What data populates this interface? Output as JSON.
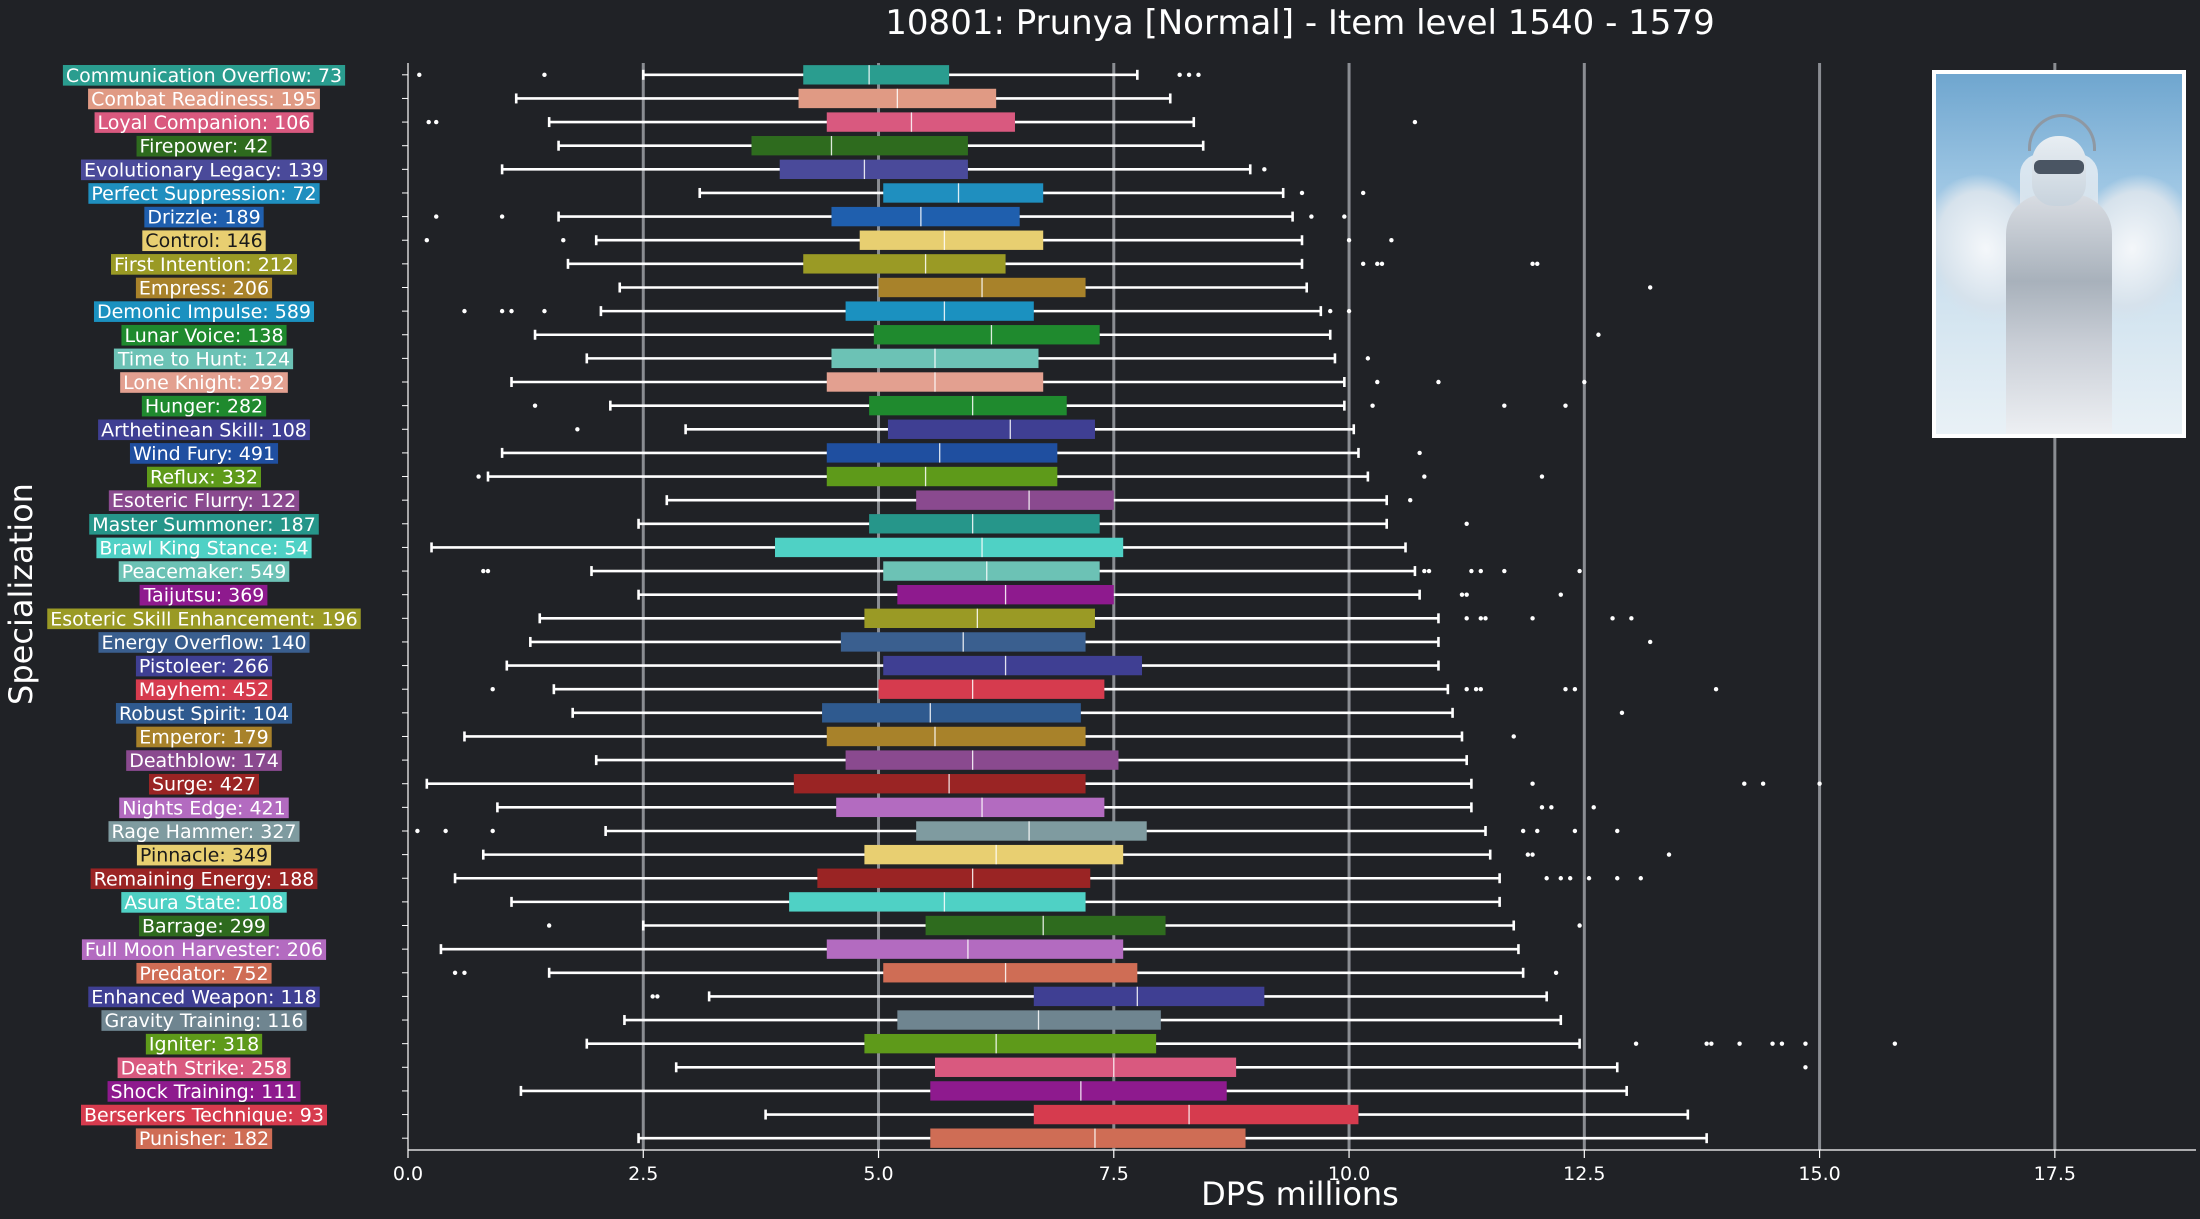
{
  "chart_data": {
    "type": "boxplot",
    "orientation": "horizontal",
    "title": "10801: Prunya [Normal] - Item level 1540 - 1579",
    "xlabel": "DPS millions",
    "ylabel": "Specialization",
    "xlim": [
      0,
      19
    ],
    "xticks": [
      0.0,
      2.5,
      5.0,
      7.5,
      10.0,
      12.5,
      15.0,
      17.5
    ],
    "xtick_labels": [
      "0.0",
      "2.5",
      "5.0",
      "7.5",
      "10.0",
      "12.5",
      "15.0",
      "17.5"
    ],
    "grid": "vertical major lines",
    "categories": [
      {
        "label": "Communication Overflow: 73",
        "color": "#2a9d8f",
        "whislo": 2.5,
        "q1": 4.2,
        "med": 4.9,
        "q3": 5.75,
        "whishi": 7.75,
        "fliers": [
          0.12,
          1.45,
          8.2,
          8.3,
          8.4
        ]
      },
      {
        "label": "Combat Readiness: 195",
        "color": "#e09a84",
        "whislo": 1.15,
        "q1": 4.15,
        "med": 5.2,
        "q3": 6.25,
        "whishi": 8.1,
        "fliers": []
      },
      {
        "label": "Loyal Companion: 106",
        "color": "#d9597f",
        "whislo": 1.5,
        "q1": 4.45,
        "med": 5.35,
        "q3": 6.45,
        "whishi": 8.35,
        "fliers": [
          0.22,
          0.3,
          10.7
        ]
      },
      {
        "label": "Firepower: 42",
        "color": "#2e6b1e",
        "whislo": 1.6,
        "q1": 3.65,
        "med": 4.5,
        "q3": 5.95,
        "whishi": 8.45,
        "fliers": []
      },
      {
        "label": "Evolutionary Legacy: 139",
        "color": "#4a4a9a",
        "whislo": 1.0,
        "q1": 3.95,
        "med": 4.85,
        "q3": 5.95,
        "whishi": 8.95,
        "fliers": [
          9.1
        ]
      },
      {
        "label": "Perfect Suppression: 72",
        "color": "#1f8fbf",
        "whislo": 3.1,
        "q1": 5.05,
        "med": 5.85,
        "q3": 6.75,
        "whishi": 9.3,
        "fliers": [
          9.5,
          10.15
        ]
      },
      {
        "label": "Drizzle: 189",
        "color": "#1f5fae",
        "whislo": 1.6,
        "q1": 4.5,
        "med": 5.45,
        "q3": 6.5,
        "whishi": 9.4,
        "fliers": [
          0.3,
          1.0,
          9.6,
          9.95
        ]
      },
      {
        "label": "Control: 146",
        "color": "#e8cf71",
        "whislo": 2.0,
        "q1": 4.8,
        "med": 5.7,
        "q3": 6.75,
        "whishi": 9.5,
        "fliers": [
          0.2,
          1.65,
          10.0,
          10.45
        ]
      },
      {
        "label": "First Intention: 212",
        "color": "#9a9a25",
        "whislo": 1.7,
        "q1": 4.2,
        "med": 5.5,
        "q3": 6.35,
        "whishi": 9.5,
        "fliers": [
          10.15,
          10.3,
          10.35,
          11.95,
          12.0
        ]
      },
      {
        "label": "Empress: 206",
        "color": "#a8822a",
        "whislo": 2.25,
        "q1": 5.0,
        "med": 6.1,
        "q3": 7.2,
        "whishi": 9.55,
        "fliers": [
          13.2
        ]
      },
      {
        "label": "Demonic Impulse: 589",
        "color": "#1b91c0",
        "whislo": 2.05,
        "q1": 4.65,
        "med": 5.7,
        "q3": 6.65,
        "whishi": 9.7,
        "fliers": [
          0.6,
          1.0,
          1.1,
          1.45,
          9.8,
          10.0
        ]
      },
      {
        "label": "Lunar Voice: 138",
        "color": "#1f8a2e",
        "whislo": 1.35,
        "q1": 4.95,
        "med": 6.2,
        "q3": 7.35,
        "whishi": 9.8,
        "fliers": [
          12.65
        ]
      },
      {
        "label": "Time to Hunt: 124",
        "color": "#6cc2b5",
        "whislo": 1.9,
        "q1": 4.5,
        "med": 5.6,
        "q3": 6.7,
        "whishi": 9.85,
        "fliers": [
          10.2
        ]
      },
      {
        "label": "Lone Knight: 292",
        "color": "#e3a090",
        "whislo": 1.1,
        "q1": 4.45,
        "med": 5.6,
        "q3": 6.75,
        "whishi": 9.95,
        "fliers": [
          10.3,
          10.95,
          12.5
        ]
      },
      {
        "label": "Hunger: 282",
        "color": "#1f8a2e",
        "whislo": 2.15,
        "q1": 4.9,
        "med": 6.0,
        "q3": 7.0,
        "whishi": 9.95,
        "fliers": [
          1.35,
          10.25,
          11.65,
          12.3
        ]
      },
      {
        "label": "Arthetinean Skill: 108",
        "color": "#3f3f93",
        "whislo": 2.95,
        "q1": 5.1,
        "med": 6.4,
        "q3": 7.3,
        "whishi": 10.05,
        "fliers": [
          1.8
        ]
      },
      {
        "label": "Wind Fury: 491",
        "color": "#1f4fa0",
        "whislo": 1.0,
        "q1": 4.45,
        "med": 5.65,
        "q3": 6.9,
        "whishi": 10.1,
        "fliers": [
          10.75
        ]
      },
      {
        "label": "Reflux: 332",
        "color": "#5e9a1a",
        "whislo": 0.85,
        "q1": 4.45,
        "med": 5.5,
        "q3": 6.9,
        "whishi": 10.2,
        "fliers": [
          0.75,
          10.8,
          12.05
        ]
      },
      {
        "label": "Esoteric Flurry: 122",
        "color": "#8a4a8f",
        "whislo": 2.75,
        "q1": 5.4,
        "med": 6.6,
        "q3": 7.5,
        "whishi": 10.4,
        "fliers": [
          10.65
        ]
      },
      {
        "label": "Master Summoner: 187",
        "color": "#26968a",
        "whislo": 2.45,
        "q1": 4.9,
        "med": 6.0,
        "q3": 7.35,
        "whishi": 10.4,
        "fliers": [
          11.25
        ]
      },
      {
        "label": "Brawl King Stance: 54",
        "color": "#4fd1c5",
        "whislo": 0.25,
        "q1": 3.9,
        "med": 6.1,
        "q3": 7.6,
        "whishi": 10.6,
        "fliers": []
      },
      {
        "label": "Peacemaker: 549",
        "color": "#6cc2b5",
        "whislo": 1.95,
        "q1": 5.05,
        "med": 6.15,
        "q3": 7.35,
        "whishi": 10.7,
        "fliers": [
          0.8,
          0.85,
          10.8,
          10.85,
          11.3,
          11.4,
          11.65,
          12.45
        ]
      },
      {
        "label": "Taijutsu: 369",
        "color": "#8e1a8e",
        "whislo": 2.45,
        "q1": 5.2,
        "med": 6.35,
        "q3": 7.5,
        "whishi": 10.75,
        "fliers": [
          11.2,
          11.25,
          12.25
        ]
      },
      {
        "label": "Esoteric Skill Enhancement: 196",
        "color": "#9a9a25",
        "whislo": 1.4,
        "q1": 4.85,
        "med": 6.05,
        "q3": 7.3,
        "whishi": 10.95,
        "fliers": [
          11.25,
          11.4,
          11.45,
          11.95,
          12.8,
          13.0
        ]
      },
      {
        "label": "Energy Overflow: 140",
        "color": "#3a5f8f",
        "whislo": 1.3,
        "q1": 4.6,
        "med": 5.9,
        "q3": 7.2,
        "whishi": 10.95,
        "fliers": [
          13.2
        ]
      },
      {
        "label": "Pistoleer: 266",
        "color": "#3f3f93",
        "whislo": 1.05,
        "q1": 5.05,
        "med": 6.35,
        "q3": 7.8,
        "whishi": 10.95,
        "fliers": []
      },
      {
        "label": "Mayhem: 452",
        "color": "#d63b4e",
        "whislo": 1.55,
        "q1": 5.0,
        "med": 6.0,
        "q3": 7.4,
        "whishi": 11.05,
        "fliers": [
          0.9,
          11.25,
          11.35,
          11.4,
          12.3,
          12.4,
          13.9
        ]
      },
      {
        "label": "Robust Spirit: 104",
        "color": "#2f5a8f",
        "whislo": 1.75,
        "q1": 4.4,
        "med": 5.55,
        "q3": 7.15,
        "whishi": 11.1,
        "fliers": [
          12.9
        ]
      },
      {
        "label": "Emperor: 179",
        "color": "#a8822a",
        "whislo": 0.6,
        "q1": 4.45,
        "med": 5.6,
        "q3": 7.2,
        "whishi": 11.2,
        "fliers": [
          11.75
        ]
      },
      {
        "label": "Deathblow: 174",
        "color": "#8a4a8f",
        "whislo": 2.0,
        "q1": 4.65,
        "med": 6.0,
        "q3": 7.55,
        "whishi": 11.25,
        "fliers": []
      },
      {
        "label": "Surge: 427",
        "color": "#9a2424",
        "whislo": 0.2,
        "q1": 4.1,
        "med": 5.75,
        "q3": 7.2,
        "whishi": 11.3,
        "fliers": [
          11.95,
          14.2,
          14.4,
          15.0
        ]
      },
      {
        "label": "Nights Edge: 421",
        "color": "#b36bc0",
        "whislo": 0.95,
        "q1": 4.55,
        "med": 6.1,
        "q3": 7.4,
        "whishi": 11.3,
        "fliers": [
          12.05,
          12.15,
          12.6
        ]
      },
      {
        "label": "Rage Hammer: 327",
        "color": "#7f9ba0",
        "whislo": 2.1,
        "q1": 5.4,
        "med": 6.6,
        "q3": 7.85,
        "whishi": 11.45,
        "fliers": [
          0.1,
          0.4,
          0.9,
          11.85,
          12.0,
          12.4,
          12.85
        ]
      },
      {
        "label": "Pinnacle: 349",
        "color": "#e8cf71",
        "whislo": 0.8,
        "q1": 4.85,
        "med": 6.25,
        "q3": 7.6,
        "whishi": 11.5,
        "fliers": [
          11.9,
          11.95,
          13.4
        ]
      },
      {
        "label": "Remaining Energy: 188",
        "color": "#9a2424",
        "whislo": 0.5,
        "q1": 4.35,
        "med": 6.0,
        "q3": 7.25,
        "whishi": 11.6,
        "fliers": [
          12.1,
          12.25,
          12.35,
          12.55,
          12.85,
          13.1
        ]
      },
      {
        "label": "Asura State: 108",
        "color": "#4fd1c5",
        "whislo": 1.1,
        "q1": 4.05,
        "med": 5.7,
        "q3": 7.2,
        "whishi": 11.6,
        "fliers": []
      },
      {
        "label": "Barrage: 299",
        "color": "#2e6b1e",
        "whislo": 2.5,
        "q1": 5.5,
        "med": 6.75,
        "q3": 8.05,
        "whishi": 11.75,
        "fliers": [
          1.5,
          12.45
        ]
      },
      {
        "label": "Full Moon Harvester: 206",
        "color": "#b36bc0",
        "whislo": 0.35,
        "q1": 4.45,
        "med": 5.95,
        "q3": 7.6,
        "whishi": 11.8,
        "fliers": []
      },
      {
        "label": "Predator: 752",
        "color": "#cf6d55",
        "whislo": 1.5,
        "q1": 5.05,
        "med": 6.35,
        "q3": 7.75,
        "whishi": 11.85,
        "fliers": [
          0.5,
          0.6,
          12.2
        ]
      },
      {
        "label": "Enhanced Weapon: 118",
        "color": "#3f3f93",
        "whislo": 3.2,
        "q1": 6.65,
        "med": 7.75,
        "q3": 9.1,
        "whishi": 12.1,
        "fliers": [
          2.6,
          2.65
        ]
      },
      {
        "label": "Gravity Training: 116",
        "color": "#6f8590",
        "whislo": 2.3,
        "q1": 5.2,
        "med": 6.7,
        "q3": 8.0,
        "whishi": 12.25,
        "fliers": []
      },
      {
        "label": "Igniter: 318",
        "color": "#5e9a1a",
        "whislo": 1.9,
        "q1": 4.85,
        "med": 6.25,
        "q3": 7.95,
        "whishi": 12.45,
        "fliers": [
          13.05,
          13.8,
          13.85,
          14.15,
          14.5,
          14.6,
          14.85,
          15.8
        ]
      },
      {
        "label": "Death Strike: 258",
        "color": "#d9597f",
        "whislo": 2.85,
        "q1": 5.6,
        "med": 7.5,
        "q3": 8.8,
        "whishi": 12.85,
        "fliers": [
          14.85
        ]
      },
      {
        "label": "Shock Training: 111",
        "color": "#8e1a8e",
        "whislo": 1.2,
        "q1": 5.55,
        "med": 7.15,
        "q3": 8.7,
        "whishi": 12.95,
        "fliers": []
      },
      {
        "label": "Berserkers Technique: 93",
        "color": "#d63b4e",
        "whislo": 3.8,
        "q1": 6.65,
        "med": 8.3,
        "q3": 10.1,
        "whishi": 13.6,
        "fliers": []
      },
      {
        "label": "Punisher: 182",
        "color": "#cf6d55",
        "whislo": 2.45,
        "q1": 5.55,
        "med": 7.3,
        "q3": 8.9,
        "whishi": 13.8,
        "fliers": []
      }
    ]
  }
}
